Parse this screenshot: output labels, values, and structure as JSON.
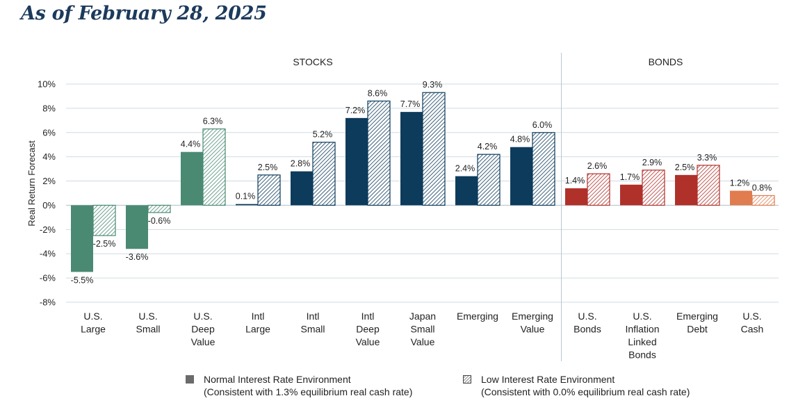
{
  "title": "As of February 28, 2025",
  "chart_data": {
    "type": "bar",
    "ylabel": "Real Return Forecast",
    "ylim": [
      -8,
      10
    ],
    "yticks": [
      10,
      8,
      6,
      4,
      2,
      0,
      -2,
      -4,
      -6,
      -8
    ],
    "grid": true,
    "sections": [
      {
        "label": "STOCKS",
        "categories": 9
      },
      {
        "label": "BONDS",
        "categories": 4
      }
    ],
    "categories": [
      [
        "U.S.",
        "Large"
      ],
      [
        "U.S.",
        "Small"
      ],
      [
        "U.S.",
        "Deep",
        "Value"
      ],
      [
        "Intl",
        "Large"
      ],
      [
        "Intl",
        "Small"
      ],
      [
        "Intl",
        "Deep",
        "Value"
      ],
      [
        "Japan",
        "Small",
        "Value"
      ],
      [
        "Emerging"
      ],
      [
        "Emerging",
        "Value"
      ],
      [
        "U.S.",
        "Bonds"
      ],
      [
        "U.S.",
        "Inflation",
        "Linked",
        "Bonds"
      ],
      [
        "Emerging",
        "Debt"
      ],
      [
        "U.S.",
        "Cash"
      ]
    ],
    "series": [
      {
        "name": "Normal Interest Rate Environment",
        "note": "(Consistent with 1.3% equilibrium real cash rate)",
        "pattern": "solid",
        "values": [
          -5.5,
          -3.6,
          4.4,
          0.1,
          2.8,
          7.2,
          7.7,
          2.4,
          4.8,
          1.4,
          1.7,
          2.5,
          1.2
        ]
      },
      {
        "name": "Low Interest Rate Environment",
        "note": "(Consistent with 0.0% equilibrium real cash rate)",
        "pattern": "hatched",
        "values": [
          -2.5,
          -0.6,
          6.3,
          2.5,
          5.2,
          8.6,
          9.3,
          4.2,
          6.0,
          2.6,
          2.9,
          3.3,
          0.8
        ]
      }
    ],
    "colors": [
      "#4a8a72",
      "#4a8a72",
      "#4a8a72",
      "#0d3b5c",
      "#0d3b5c",
      "#0d3b5c",
      "#0d3b5c",
      "#0d3b5c",
      "#0d3b5c",
      "#b0312a",
      "#b0312a",
      "#b0312a",
      "#e07c4e"
    ],
    "legend_swatch_color": "#6b6b6b"
  }
}
